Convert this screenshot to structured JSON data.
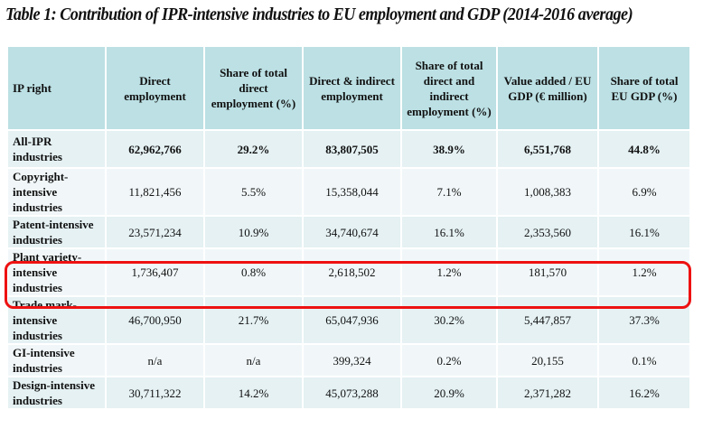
{
  "title": "Table 1: Contribution of IPR-intensive industries to EU employment and GDP (2014-2016 average)",
  "table": {
    "headers": [
      "IP right",
      "Direct employment",
      "Share of total direct employment (%)",
      "Direct & indirect employment",
      "Share of total direct and indirect employment (%)",
      "Value added / EU GDP (€ million)",
      "Share of total EU GDP (%)"
    ],
    "rows": [
      [
        "All-IPR industries",
        "62,962,766",
        "29.2%",
        "83,807,505",
        "38.9%",
        "6,551,768",
        "44.8%"
      ],
      [
        "Copyright-intensive industries",
        "11,821,456",
        "5.5%",
        "15,358,044",
        "7.1%",
        "1,008,383",
        "6.9%"
      ],
      [
        "Patent-intensive industries",
        "23,571,234",
        "10.9%",
        "34,740,674",
        "16.1%",
        "2,353,560",
        "16.1%"
      ],
      [
        "Plant variety-intensive industries",
        "1,736,407",
        "0.8%",
        "2,618,502",
        "1.2%",
        "181,570",
        "1.2%"
      ],
      [
        "Trade mark-intensive industries",
        "46,700,950",
        "21.7%",
        "65,047,936",
        "30.2%",
        "5,447,857",
        "37.3%"
      ],
      [
        "GI-intensive industries",
        "n/a",
        "n/a",
        "399,324",
        "0.2%",
        "20,155",
        "0.1%"
      ],
      [
        "Design-intensive industries",
        "30,711,322",
        "14.2%",
        "45,073,288",
        "20.9%",
        "2,371,282",
        "16.2%"
      ]
    ],
    "highlighted_row": "Plant variety-intensive industries"
  },
  "colors": {
    "header_bg": "#bce0e4",
    "row_shade": "#e5f1f3",
    "row_light": "#f1f7f9",
    "highlight": "#ee1111"
  }
}
